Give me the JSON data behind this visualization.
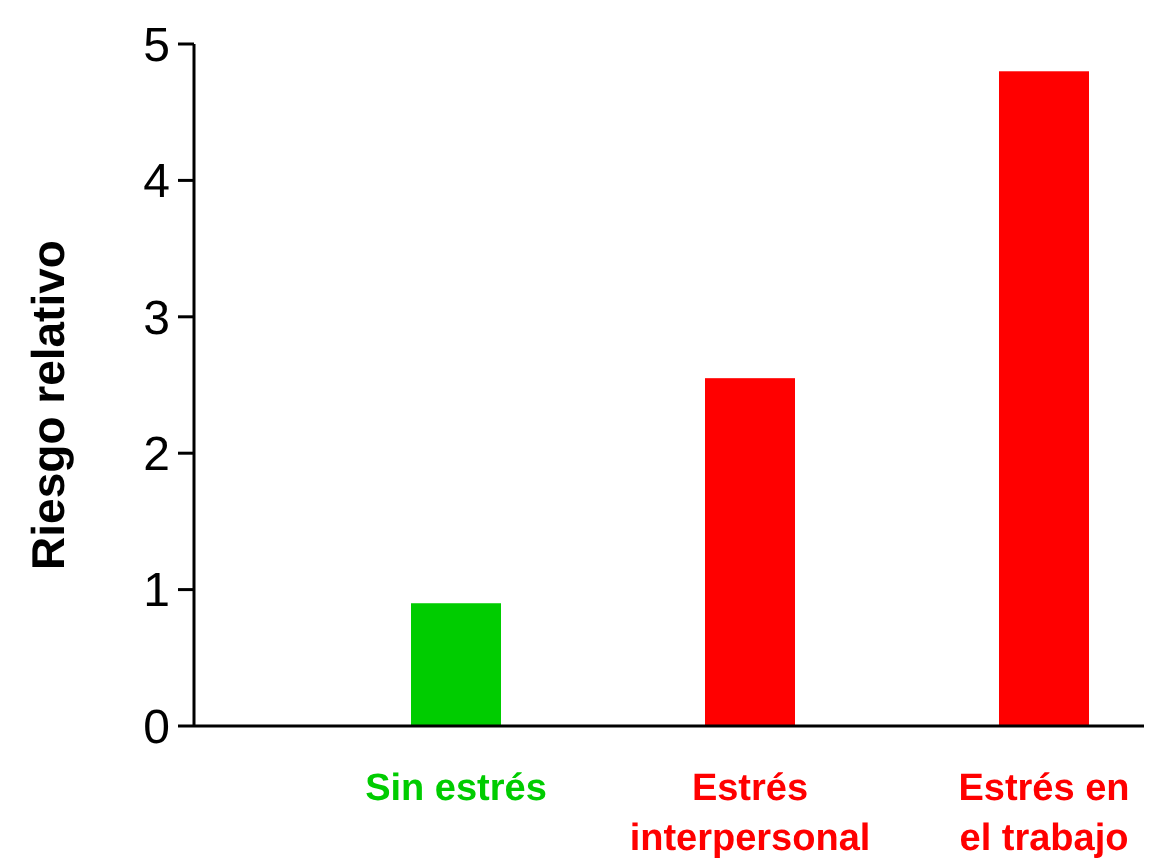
{
  "chart_data": {
    "type": "bar",
    "ylabel": "Riesgo relativo",
    "categories": [
      "Sin estrés",
      "Estrés interpersonal",
      "Estrés en el trabajo"
    ],
    "values": [
      0.9,
      2.55,
      4.8
    ],
    "colors": [
      "#00cc00",
      "#ff0000",
      "#ff0000"
    ],
    "ylim": [
      0,
      5
    ],
    "yticks": [
      0,
      1,
      2,
      3,
      4,
      5
    ],
    "grid": false
  }
}
